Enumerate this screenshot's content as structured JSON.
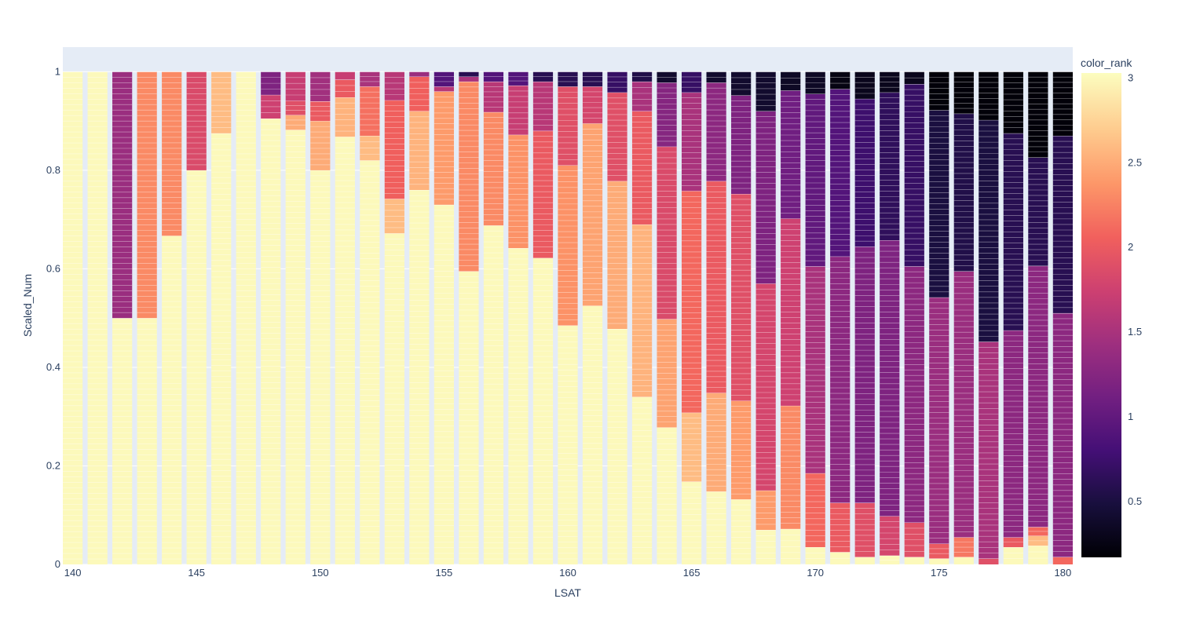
{
  "chart_data": {
    "type": "bar",
    "stacked": true,
    "xlabel": "LSAT",
    "ylabel": "Scaled_Num",
    "x_ticks": [
      140,
      145,
      150,
      155,
      160,
      165,
      170,
      175,
      180
    ],
    "y_ticks": [
      0,
      0.2,
      0.4,
      0.6,
      0.8,
      1
    ],
    "xlim": [
      139.6,
      180.4
    ],
    "ylim": [
      0,
      1.05
    ],
    "colorbar": {
      "title": "color_rank",
      "colorscale": "magma",
      "range": [
        0.17,
        3.03
      ],
      "ticks": [
        0.5,
        1,
        1.5,
        2,
        2.5,
        3
      ]
    },
    "categories": [
      140,
      141,
      142,
      143,
      144,
      145,
      146,
      147,
      148,
      149,
      150,
      151,
      152,
      153,
      154,
      155,
      156,
      157,
      158,
      159,
      160,
      161,
      162,
      163,
      164,
      165,
      166,
      167,
      168,
      169,
      170,
      171,
      172,
      173,
      174,
      175,
      176,
      177,
      178,
      179,
      180
    ],
    "bars": [
      {
        "x": 140,
        "segments": [
          {
            "value": 1.0,
            "color_rank": 3.0
          }
        ]
      },
      {
        "x": 141,
        "segments": [
          {
            "value": 1.0,
            "color_rank": 3.0
          }
        ]
      },
      {
        "x": 142,
        "segments": [
          {
            "value": 0.5,
            "color_rank": 3.0
          },
          {
            "value": 0.5,
            "color_rank": 1.4
          }
        ]
      },
      {
        "x": 143,
        "segments": [
          {
            "value": 0.5,
            "color_rank": 3.0
          },
          {
            "value": 0.5,
            "color_rank": 2.3
          }
        ]
      },
      {
        "x": 144,
        "segments": [
          {
            "value": 0.667,
            "color_rank": 3.0
          },
          {
            "value": 0.333,
            "color_rank": 2.3
          }
        ]
      },
      {
        "x": 145,
        "segments": [
          {
            "value": 0.8,
            "color_rank": 3.0
          },
          {
            "value": 0.2,
            "color_rank": 1.85
          }
        ]
      },
      {
        "x": 146,
        "segments": [
          {
            "value": 0.875,
            "color_rank": 3.0
          },
          {
            "value": 0.125,
            "color_rank": 2.6
          }
        ]
      },
      {
        "x": 147,
        "segments": [
          {
            "value": 1.0,
            "color_rank": 3.0
          }
        ]
      },
      {
        "x": 148,
        "segments": [
          {
            "value": 0.905,
            "color_rank": 3.0
          },
          {
            "value": 0.048,
            "color_rank": 1.75
          },
          {
            "value": 0.047,
            "color_rank": 1.2
          }
        ]
      },
      {
        "x": 149,
        "segments": [
          {
            "value": 0.882,
            "color_rank": 3.0
          },
          {
            "value": 0.03,
            "color_rank": 2.5
          },
          {
            "value": 0.029,
            "color_rank": 1.9
          },
          {
            "value": 0.059,
            "color_rank": 1.7
          }
        ]
      },
      {
        "x": 150,
        "segments": [
          {
            "value": 0.8,
            "color_rank": 3.0
          },
          {
            "value": 0.1,
            "color_rank": 2.5
          },
          {
            "value": 0.04,
            "color_rank": 2.0
          },
          {
            "value": 0.06,
            "color_rank": 1.45
          }
        ]
      },
      {
        "x": 151,
        "segments": [
          {
            "value": 0.868,
            "color_rank": 3.0
          },
          {
            "value": 0.08,
            "color_rank": 2.55
          },
          {
            "value": 0.036,
            "color_rank": 2.0
          },
          {
            "value": 0.016,
            "color_rank": 1.7
          }
        ]
      },
      {
        "x": 152,
        "segments": [
          {
            "value": 0.82,
            "color_rank": 3.0
          },
          {
            "value": 0.05,
            "color_rank": 2.6
          },
          {
            "value": 0.1,
            "color_rank": 2.15
          },
          {
            "value": 0.03,
            "color_rank": 1.5
          }
        ]
      },
      {
        "x": 153,
        "segments": [
          {
            "value": 0.672,
            "color_rank": 3.0
          },
          {
            "value": 0.07,
            "color_rank": 2.6
          },
          {
            "value": 0.2,
            "color_rank": 2.05
          },
          {
            "value": 0.058,
            "color_rank": 1.6
          }
        ]
      },
      {
        "x": 154,
        "segments": [
          {
            "value": 0.76,
            "color_rank": 3.0
          },
          {
            "value": 0.16,
            "color_rank": 2.55
          },
          {
            "value": 0.07,
            "color_rank": 2.05
          },
          {
            "value": 0.01,
            "color_rank": 1.4
          }
        ]
      },
      {
        "x": 155,
        "segments": [
          {
            "value": 0.73,
            "color_rank": 3.0
          },
          {
            "value": 0.23,
            "color_rank": 2.4
          },
          {
            "value": 0.01,
            "color_rank": 1.6
          },
          {
            "value": 0.03,
            "color_rank": 0.9
          }
        ]
      },
      {
        "x": 156,
        "segments": [
          {
            "value": 0.595,
            "color_rank": 3.0
          },
          {
            "value": 0.385,
            "color_rank": 2.3
          },
          {
            "value": 0.01,
            "color_rank": 1.5
          },
          {
            "value": 0.01,
            "color_rank": 0.6
          }
        ]
      },
      {
        "x": 157,
        "segments": [
          {
            "value": 0.688,
            "color_rank": 3.0
          },
          {
            "value": 0.23,
            "color_rank": 2.3
          },
          {
            "value": 0.062,
            "color_rank": 1.6
          },
          {
            "value": 0.02,
            "color_rank": 0.9
          }
        ]
      },
      {
        "x": 158,
        "segments": [
          {
            "value": 0.642,
            "color_rank": 3.0
          },
          {
            "value": 0.23,
            "color_rank": 2.35
          },
          {
            "value": 0.1,
            "color_rank": 1.7
          },
          {
            "value": 0.028,
            "color_rank": 0.9
          }
        ]
      },
      {
        "x": 159,
        "segments": [
          {
            "value": 0.622,
            "color_rank": 3.0
          },
          {
            "value": 0.258,
            "color_rank": 2.0
          },
          {
            "value": 0.1,
            "color_rank": 1.6
          },
          {
            "value": 0.02,
            "color_rank": 0.6
          }
        ]
      },
      {
        "x": 160,
        "segments": [
          {
            "value": 0.485,
            "color_rank": 3.0
          },
          {
            "value": 0.325,
            "color_rank": 2.35
          },
          {
            "value": 0.16,
            "color_rank": 1.9
          },
          {
            "value": 0.03,
            "color_rank": 0.6
          }
        ]
      },
      {
        "x": 161,
        "segments": [
          {
            "value": 0.525,
            "color_rank": 3.0
          },
          {
            "value": 0.37,
            "color_rank": 2.45
          },
          {
            "value": 0.075,
            "color_rank": 1.8
          },
          {
            "value": 0.03,
            "color_rank": 0.6
          }
        ]
      },
      {
        "x": 162,
        "segments": [
          {
            "value": 0.478,
            "color_rank": 3.0
          },
          {
            "value": 0.3,
            "color_rank": 2.5
          },
          {
            "value": 0.18,
            "color_rank": 1.9
          },
          {
            "value": 0.042,
            "color_rank": 0.7
          }
        ]
      },
      {
        "x": 163,
        "segments": [
          {
            "value": 0.34,
            "color_rank": 3.0
          },
          {
            "value": 0.35,
            "color_rank": 2.55
          },
          {
            "value": 0.23,
            "color_rank": 2.0
          },
          {
            "value": 0.06,
            "color_rank": 1.5
          },
          {
            "value": 0.02,
            "color_rank": 0.55
          }
        ]
      },
      {
        "x": 164,
        "segments": [
          {
            "value": 0.278,
            "color_rank": 3.0
          },
          {
            "value": 0.22,
            "color_rank": 2.45
          },
          {
            "value": 0.35,
            "color_rank": 1.85
          },
          {
            "value": 0.13,
            "color_rank": 1.25
          },
          {
            "value": 0.022,
            "color_rank": 0.4
          }
        ]
      },
      {
        "x": 165,
        "segments": [
          {
            "value": 0.168,
            "color_rank": 3.0
          },
          {
            "value": 0.14,
            "color_rank": 2.6
          },
          {
            "value": 0.45,
            "color_rank": 2.1
          },
          {
            "value": 0.2,
            "color_rank": 1.5
          },
          {
            "value": 0.042,
            "color_rank": 0.7
          }
        ]
      },
      {
        "x": 166,
        "segments": [
          {
            "value": 0.148,
            "color_rank": 3.0
          },
          {
            "value": 0.2,
            "color_rank": 2.5
          },
          {
            "value": 0.43,
            "color_rank": 2.0
          },
          {
            "value": 0.2,
            "color_rank": 1.3
          },
          {
            "value": 0.022,
            "color_rank": 0.4
          }
        ]
      },
      {
        "x": 167,
        "segments": [
          {
            "value": 0.132,
            "color_rank": 3.0
          },
          {
            "value": 0.2,
            "color_rank": 2.4
          },
          {
            "value": 0.42,
            "color_rank": 1.9
          },
          {
            "value": 0.2,
            "color_rank": 1.2
          },
          {
            "value": 0.048,
            "color_rank": 0.4
          }
        ]
      },
      {
        "x": 168,
        "segments": [
          {
            "value": 0.07,
            "color_rank": 3.0
          },
          {
            "value": 0.08,
            "color_rank": 2.4
          },
          {
            "value": 0.42,
            "color_rank": 1.8
          },
          {
            "value": 0.35,
            "color_rank": 1.2
          },
          {
            "value": 0.08,
            "color_rank": 0.4
          }
        ]
      },
      {
        "x": 169,
        "segments": [
          {
            "value": 0.072,
            "color_rank": 3.0
          },
          {
            "value": 0.25,
            "color_rank": 2.3
          },
          {
            "value": 0.38,
            "color_rank": 1.75
          },
          {
            "value": 0.26,
            "color_rank": 1.1
          },
          {
            "value": 0.038,
            "color_rank": 0.35
          }
        ]
      },
      {
        "x": 170,
        "segments": [
          {
            "value": 0.035,
            "color_rank": 3.0
          },
          {
            "value": 0.15,
            "color_rank": 2.1
          },
          {
            "value": 0.42,
            "color_rank": 1.5
          },
          {
            "value": 0.35,
            "color_rank": 1.0
          },
          {
            "value": 0.045,
            "color_rank": 0.35
          }
        ]
      },
      {
        "x": 171,
        "segments": [
          {
            "value": 0.025,
            "color_rank": 3.0
          },
          {
            "value": 0.1,
            "color_rank": 2.0
          },
          {
            "value": 0.5,
            "color_rank": 1.3
          },
          {
            "value": 0.34,
            "color_rank": 0.9
          },
          {
            "value": 0.035,
            "color_rank": 0.25
          }
        ]
      },
      {
        "x": 172,
        "segments": [
          {
            "value": 0.015,
            "color_rank": 3.0
          },
          {
            "value": 0.11,
            "color_rank": 1.9
          },
          {
            "value": 0.52,
            "color_rank": 1.2
          },
          {
            "value": 0.3,
            "color_rank": 0.75
          },
          {
            "value": 0.055,
            "color_rank": 0.3
          }
        ]
      },
      {
        "x": 173,
        "segments": [
          {
            "value": 0.018,
            "color_rank": 3.0
          },
          {
            "value": 0.08,
            "color_rank": 1.8
          },
          {
            "value": 0.56,
            "color_rank": 1.2
          },
          {
            "value": 0.3,
            "color_rank": 0.65
          },
          {
            "value": 0.042,
            "color_rank": 0.3
          }
        ]
      },
      {
        "x": 174,
        "segments": [
          {
            "value": 0.015,
            "color_rank": 3.0
          },
          {
            "value": 0.07,
            "color_rank": 1.9
          },
          {
            "value": 0.52,
            "color_rank": 1.3
          },
          {
            "value": 0.37,
            "color_rank": 0.7
          },
          {
            "value": 0.025,
            "color_rank": 0.3
          }
        ]
      },
      {
        "x": 175,
        "segments": [
          {
            "value": 0.012,
            "color_rank": 3.0
          },
          {
            "value": 0.03,
            "color_rank": 2.0
          },
          {
            "value": 0.5,
            "color_rank": 1.4
          },
          {
            "value": 0.38,
            "color_rank": 0.5
          },
          {
            "value": 0.078,
            "color_rank": 0.2
          }
        ]
      },
      {
        "x": 176,
        "segments": [
          {
            "value": 0.015,
            "color_rank": 3.0
          },
          {
            "value": 0.04,
            "color_rank": 2.2
          },
          {
            "value": 0.54,
            "color_rank": 1.4
          },
          {
            "value": 0.32,
            "color_rank": 0.55
          },
          {
            "value": 0.085,
            "color_rank": 0.2
          }
        ]
      },
      {
        "x": 177,
        "segments": [
          {
            "value": 0.012,
            "color_rank": 1.9
          },
          {
            "value": 0.44,
            "color_rank": 1.5
          },
          {
            "value": 0.45,
            "color_rank": 0.5
          },
          {
            "value": 0.098,
            "color_rank": 0.2
          }
        ]
      },
      {
        "x": 178,
        "segments": [
          {
            "value": 0.035,
            "color_rank": 3.0
          },
          {
            "value": 0.02,
            "color_rank": 2.0
          },
          {
            "value": 0.42,
            "color_rank": 1.3
          },
          {
            "value": 0.4,
            "color_rank": 0.6
          },
          {
            "value": 0.125,
            "color_rank": 0.2
          }
        ]
      },
      {
        "x": 179,
        "segments": [
          {
            "value": 0.038,
            "color_rank": 3.0
          },
          {
            "value": 0.02,
            "color_rank": 2.6
          },
          {
            "value": 0.018,
            "color_rank": 2.1
          },
          {
            "value": 0.53,
            "color_rank": 1.3
          },
          {
            "value": 0.22,
            "color_rank": 0.6
          },
          {
            "value": 0.174,
            "color_rank": 0.2
          }
        ]
      },
      {
        "x": 180,
        "segments": [
          {
            "value": 0.015,
            "color_rank": 2.1
          },
          {
            "value": 0.495,
            "color_rank": 1.3
          },
          {
            "value": 0.36,
            "color_rank": 0.6
          },
          {
            "value": 0.13,
            "color_rank": 0.2
          }
        ]
      }
    ]
  }
}
